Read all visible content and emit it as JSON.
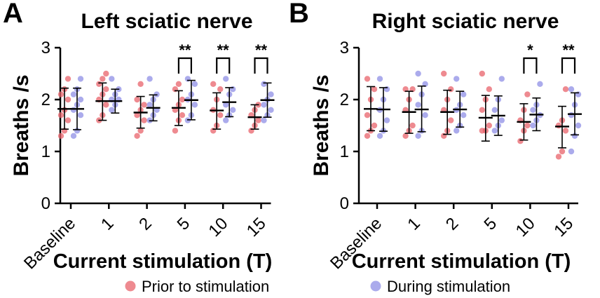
{
  "chart_data": [
    {
      "panel": "A",
      "type": "scatter",
      "title": "Left sciatic nerve",
      "xlabel": "Current stimulation (T)",
      "ylabel": "Breaths /s",
      "ylim": [
        0,
        3
      ],
      "yticks": [
        "0",
        "1",
        "2",
        "3"
      ],
      "categories": [
        "Baseline",
        "1",
        "2",
        "5",
        "10",
        "15"
      ],
      "series": [
        {
          "name": "Prior to stimulation",
          "color": "#e8636b",
          "mean": [
            1.82,
            1.97,
            1.75,
            1.84,
            1.79,
            1.66
          ],
          "sd_low": [
            1.43,
            1.6,
            1.45,
            1.5,
            1.43,
            1.43
          ],
          "sd_high": [
            2.22,
            2.32,
            2.06,
            2.17,
            2.13,
            1.9
          ],
          "points": [
            [
              1.3,
              1.4,
              1.6,
              1.7,
              1.8,
              2.0,
              2.1,
              2.2,
              2.4
            ],
            [
              1.6,
              1.7,
              1.9,
              2.0,
              2.1,
              2.2,
              2.3,
              2.4,
              2.5
            ],
            [
              1.3,
              1.4,
              1.6,
              1.7,
              1.8,
              1.9,
              2.0,
              2.3
            ],
            [
              1.4,
              1.6,
              1.7,
              1.8,
              1.9,
              2.0,
              2.2,
              2.3
            ],
            [
              1.4,
              1.5,
              1.7,
              1.8,
              2.0,
              2.2,
              2.3
            ],
            [
              1.4,
              1.5,
              1.6,
              1.7,
              1.8,
              1.9
            ]
          ]
        },
        {
          "name": "During stimulation",
          "color": "#8f8fe6",
          "mean": [
            1.82,
            1.97,
            1.84,
            1.99,
            1.95,
            1.99
          ],
          "sd_low": [
            1.42,
            1.74,
            1.59,
            1.61,
            1.67,
            1.66
          ],
          "sd_high": [
            2.22,
            2.2,
            2.09,
            2.37,
            2.23,
            2.32
          ],
          "points": [
            [
              1.3,
              1.4,
              1.7,
              1.8,
              1.9,
              2.0,
              2.1,
              2.2,
              2.4
            ],
            [
              1.8,
              1.9,
              2.0,
              2.0,
              2.1,
              2.2,
              2.4
            ],
            [
              1.6,
              1.7,
              1.8,
              1.9,
              2.0,
              2.1,
              2.4
            ],
            [
              1.6,
              1.7,
              1.9,
              2.0,
              2.1,
              2.3,
              2.4
            ],
            [
              1.6,
              1.7,
              1.8,
              1.9,
              2.1,
              2.2,
              2.4
            ],
            [
              1.6,
              1.7,
              1.8,
              1.9,
              2.0,
              2.1,
              2.3
            ]
          ]
        }
      ],
      "significance": [
        {
          "category": "5",
          "label": "**"
        },
        {
          "category": "10",
          "label": "**"
        },
        {
          "category": "15",
          "label": "**"
        }
      ]
    },
    {
      "panel": "B",
      "type": "scatter",
      "title": "Right sciatic nerve",
      "xlabel": "Current stimulation (T)",
      "ylabel": "Breaths /s",
      "ylim": [
        0,
        3
      ],
      "yticks": [
        "0",
        "1",
        "2",
        "3"
      ],
      "categories": [
        "Baseline",
        "1",
        "2",
        "5",
        "10",
        "15"
      ],
      "series": [
        {
          "name": "Prior to stimulation",
          "color": "#e8636b",
          "mean": [
            1.82,
            1.76,
            1.76,
            1.65,
            1.57,
            1.48
          ],
          "sd_low": [
            1.4,
            1.35,
            1.33,
            1.2,
            1.22,
            1.07
          ],
          "sd_high": [
            2.25,
            2.16,
            2.18,
            2.08,
            1.92,
            1.87
          ],
          "points": [
            [
              1.3,
              1.4,
              1.5,
              1.7,
              2.0,
              2.2,
              2.4
            ],
            [
              1.3,
              1.4,
              1.5,
              1.8,
              2.0,
              2.2,
              2.2
            ],
            [
              1.3,
              1.4,
              1.6,
              1.8,
              2.0,
              2.2,
              2.5
            ],
            [
              1.4,
              1.4,
              1.5,
              1.8,
              2.0,
              2.2,
              2.5
            ],
            [
              1.2,
              1.4,
              1.5,
              1.6,
              1.8,
              2.1
            ],
            [
              0.9,
              1.0,
              1.4,
              1.5,
              1.6,
              2.2
            ]
          ]
        },
        {
          "name": "During stimulation",
          "color": "#8f8fe6",
          "mean": [
            1.81,
            1.81,
            1.81,
            1.69,
            1.71,
            1.72
          ],
          "sd_low": [
            1.39,
            1.38,
            1.47,
            1.31,
            1.4,
            1.32
          ],
          "sd_high": [
            2.23,
            2.26,
            2.16,
            2.07,
            2.03,
            2.13
          ],
          "points": [
            [
              1.3,
              1.4,
              1.6,
              1.8,
              2.0,
              2.2,
              2.4
            ],
            [
              1.3,
              1.4,
              1.7,
              1.9,
              2.1,
              2.3,
              2.5
            ],
            [
              1.4,
              1.5,
              1.7,
              1.8,
              1.9,
              2.1,
              2.4
            ],
            [
              1.4,
              1.5,
              1.6,
              1.8,
              2.0,
              2.4
            ],
            [
              1.5,
              1.6,
              1.7,
              1.8,
              1.9,
              2.3
            ],
            [
              1.0,
              1.3,
              1.5,
              1.7,
              1.9,
              2.1,
              2.2
            ]
          ]
        }
      ],
      "significance": [
        {
          "category": "10",
          "label": "*"
        },
        {
          "category": "15",
          "label": "**"
        }
      ]
    }
  ],
  "legend": {
    "items": [
      {
        "label": "Prior to stimulation",
        "color": "#e8636b"
      },
      {
        "label": "During stimulation",
        "color": "#8f8fe6"
      }
    ]
  }
}
